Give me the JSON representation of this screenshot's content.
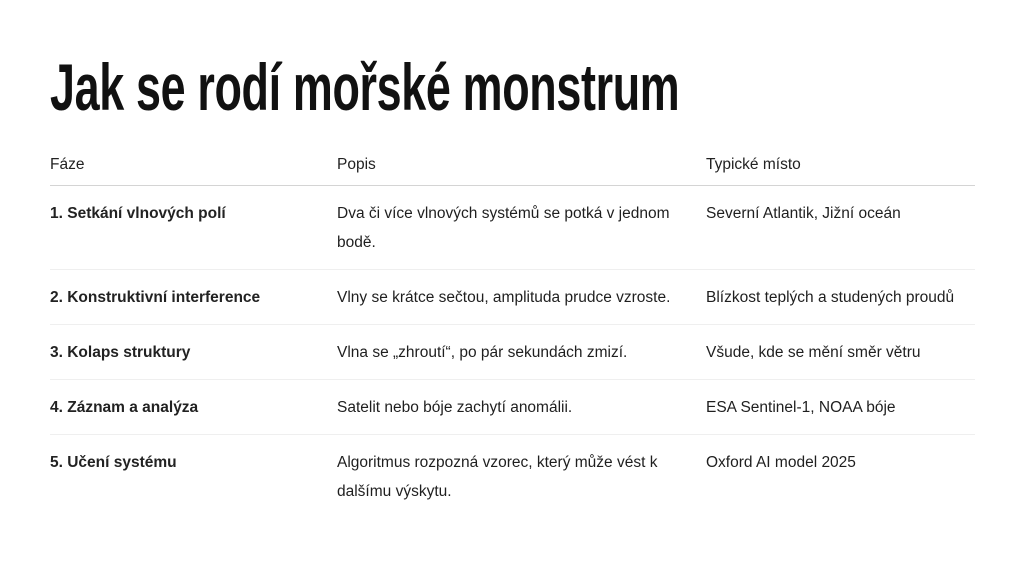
{
  "title": "Jak se rodí mořské monstrum",
  "table": {
    "headers": [
      "Fáze",
      "Popis",
      "Typické místo"
    ],
    "rows": [
      [
        "1. Setkání vlnových polí",
        "Dva či více vlnových systémů se potká v jednom bodě.",
        "Severní Atlantik, Jižní oceán"
      ],
      [
        "2. Konstruktivní interference",
        "Vlny se krátce sečtou, amplituda prudce vzroste.",
        "Blízkost teplých a studených proudů"
      ],
      [
        "3. Kolaps struktury",
        "Vlna se „zhroutí“, po pár sekundách zmizí.",
        "Všude, kde se mění směr větru"
      ],
      [
        "4. Záznam a analýza",
        "Satelit nebo bóje zachytí anomálii.",
        "ESA Sentinel-1, NOAA bóje"
      ],
      [
        "5. Učení systému",
        "Algoritmus rozpozná vzorec, který může vést k dalšímu výskytu.",
        "Oxford AI model 2025"
      ]
    ]
  }
}
